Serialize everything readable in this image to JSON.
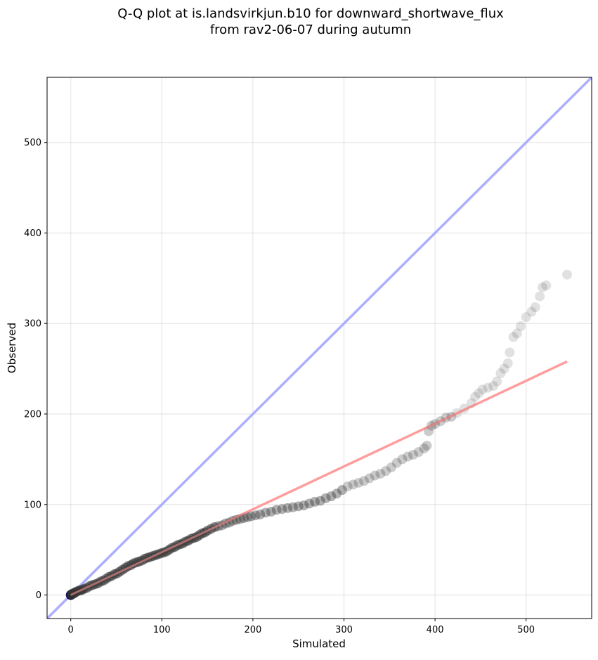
{
  "chart_data": {
    "type": "scatter",
    "title_line1": "Q-Q plot at is.landsvirkjun.b10 for downward_shortwave_flux",
    "title_line2": "from rav2-06-07 during autumn",
    "xlabel": "Simulated",
    "ylabel": "Observed",
    "xlim": [
      -26,
      572
    ],
    "ylim": [
      -26,
      572
    ],
    "xticks": [
      0,
      100,
      200,
      300,
      400,
      500
    ],
    "yticks": [
      0,
      100,
      200,
      300,
      400,
      500
    ],
    "grid": true,
    "colors": {
      "points": "#333333",
      "low_point": "#0a0a40",
      "identity_line": "#aaaaff",
      "fit_line": "#ff9999"
    },
    "series": [
      {
        "kind": "points",
        "points": [
          [
            0,
            0
          ],
          [
            1,
            1
          ],
          [
            2,
            1
          ],
          [
            3,
            2
          ],
          [
            4,
            2
          ],
          [
            5,
            3
          ],
          [
            7,
            4
          ],
          [
            9,
            5
          ],
          [
            11,
            5
          ],
          [
            13,
            6
          ],
          [
            15,
            7
          ],
          [
            18,
            8
          ],
          [
            21,
            10
          ],
          [
            24,
            11
          ],
          [
            27,
            12
          ],
          [
            30,
            13
          ],
          [
            33,
            15
          ],
          [
            36,
            16
          ],
          [
            39,
            18
          ],
          [
            42,
            20
          ],
          [
            45,
            21
          ],
          [
            48,
            23
          ],
          [
            51,
            24
          ],
          [
            54,
            26
          ],
          [
            57,
            28
          ],
          [
            60,
            30
          ],
          [
            63,
            32
          ],
          [
            66,
            33
          ],
          [
            69,
            35
          ],
          [
            72,
            36
          ],
          [
            75,
            37
          ],
          [
            78,
            38
          ],
          [
            81,
            40
          ],
          [
            84,
            41
          ],
          [
            87,
            42
          ],
          [
            90,
            43
          ],
          [
            93,
            44
          ],
          [
            96,
            45
          ],
          [
            99,
            46
          ],
          [
            102,
            47
          ],
          [
            105,
            48
          ],
          [
            108,
            50
          ],
          [
            111,
            52
          ],
          [
            114,
            53
          ],
          [
            117,
            55
          ],
          [
            120,
            56
          ],
          [
            123,
            57
          ],
          [
            126,
            59
          ],
          [
            129,
            60
          ],
          [
            132,
            62
          ],
          [
            135,
            63
          ],
          [
            138,
            64
          ],
          [
            141,
            66
          ],
          [
            144,
            68
          ],
          [
            147,
            69
          ],
          [
            150,
            71
          ],
          [
            154,
            73
          ],
          [
            158,
            75
          ],
          [
            162,
            76
          ],
          [
            166,
            77
          ],
          [
            170,
            79
          ],
          [
            174,
            80
          ],
          [
            178,
            82
          ],
          [
            182,
            83
          ],
          [
            186,
            84
          ],
          [
            190,
            85
          ],
          [
            194,
            86
          ],
          [
            198,
            87
          ],
          [
            203,
            88
          ],
          [
            208,
            89
          ],
          [
            214,
            91
          ],
          [
            220,
            92
          ],
          [
            226,
            94
          ],
          [
            232,
            95
          ],
          [
            238,
            96
          ],
          [
            244,
            97
          ],
          [
            250,
            98
          ],
          [
            256,
            99
          ],
          [
            262,
            101
          ],
          [
            268,
            103
          ],
          [
            274,
            104
          ],
          [
            280,
            107
          ],
          [
            286,
            109
          ],
          [
            292,
            112
          ],
          [
            298,
            116
          ],
          [
            304,
            120
          ],
          [
            310,
            122
          ],
          [
            316,
            124
          ],
          [
            322,
            126
          ],
          [
            328,
            129
          ],
          [
            334,
            132
          ],
          [
            340,
            134
          ],
          [
            346,
            137
          ],
          [
            352,
            141
          ],
          [
            358,
            146
          ],
          [
            364,
            150
          ],
          [
            370,
            153
          ],
          [
            376,
            155
          ],
          [
            382,
            158
          ],
          [
            388,
            162
          ],
          [
            391,
            165
          ],
          [
            393,
            181
          ],
          [
            396,
            187
          ],
          [
            400,
            189
          ],
          [
            406,
            192
          ],
          [
            412,
            196
          ],
          [
            418,
            197
          ],
          [
            424,
            201
          ],
          [
            432,
            206
          ],
          [
            440,
            212
          ],
          [
            444,
            219
          ],
          [
            448,
            223
          ],
          [
            452,
            227
          ],
          [
            458,
            229
          ],
          [
            464,
            231
          ],
          [
            468,
            236
          ],
          [
            472,
            245
          ],
          [
            476,
            250
          ],
          [
            480,
            256
          ],
          [
            482,
            268
          ],
          [
            486,
            285
          ],
          [
            490,
            289
          ],
          [
            494,
            297
          ],
          [
            500,
            307
          ],
          [
            506,
            313
          ],
          [
            510,
            318
          ],
          [
            515,
            330
          ],
          [
            518,
            340
          ],
          [
            522,
            342
          ],
          [
            545,
            354
          ]
        ]
      },
      {
        "kind": "line",
        "name_role": "identity",
        "points": [
          [
            -26,
            -26
          ],
          [
            572,
            572
          ]
        ]
      },
      {
        "kind": "line",
        "name_role": "fit",
        "points": [
          [
            0,
            0
          ],
          [
            545,
            258
          ]
        ]
      }
    ]
  }
}
